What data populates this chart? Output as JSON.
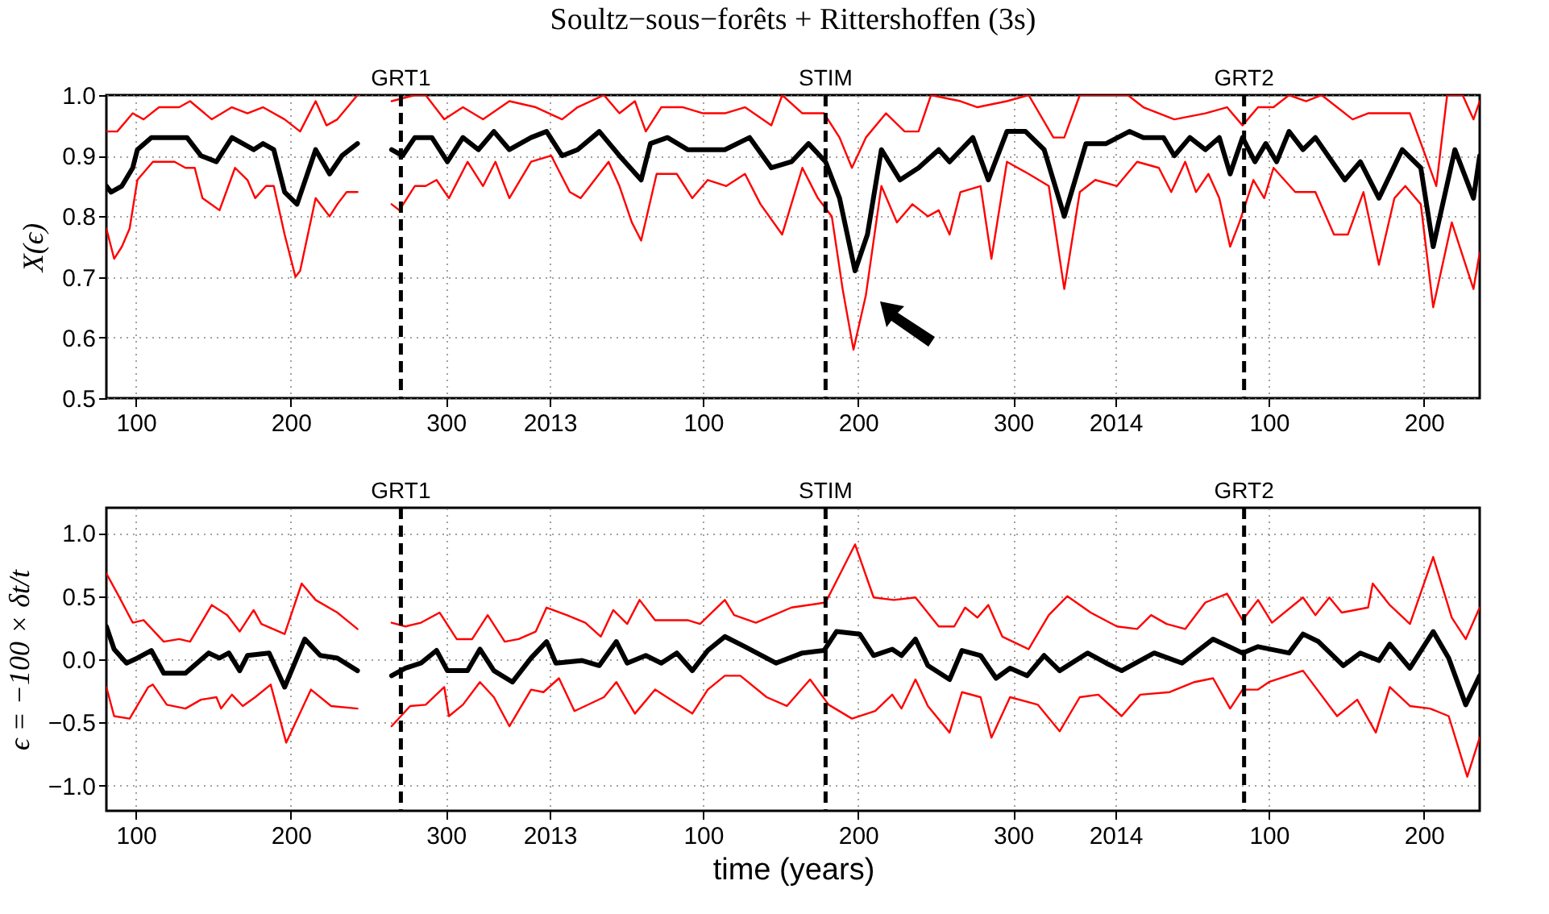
{
  "chart_data": [
    {
      "type": "line",
      "title": "Soultz−sous−forêts + Rittershoffen (3s)",
      "ylabel": "X(ϵ)",
      "xlim": [
        "2012-03-21",
        "2014-08-24"
      ],
      "ylim": [
        0.5,
        1.0
      ],
      "xticks": [
        {
          "value": "2012-04-09",
          "label": "100"
        },
        {
          "value": "2012-07-18",
          "label": "200"
        },
        {
          "value": "2012-10-26",
          "label": "300"
        },
        {
          "value": "2013-01-01",
          "label": "2013"
        },
        {
          "value": "2013-04-10",
          "label": "100"
        },
        {
          "value": "2013-07-19",
          "label": "200"
        },
        {
          "value": "2013-10-27",
          "label": "300"
        },
        {
          "value": "2014-01-01",
          "label": "2014"
        },
        {
          "value": "2014-04-10",
          "label": "100"
        },
        {
          "value": "2014-07-19",
          "label": "200"
        }
      ],
      "yticks": [
        {
          "value": 0.5,
          "label": "0.5"
        },
        {
          "value": 0.6,
          "label": "0.6"
        },
        {
          "value": 0.7,
          "label": "0.7"
        },
        {
          "value": 0.8,
          "label": "0.8"
        },
        {
          "value": 0.9,
          "label": "0.9"
        },
        {
          "value": 1.0,
          "label": "1.0"
        }
      ],
      "grid": true,
      "ref_lines": [
        {
          "axis": "x",
          "value": "2012-09-27",
          "label": "GRT1",
          "color": "#000000",
          "line_style": "dashed"
        },
        {
          "axis": "x",
          "value": "2013-06-28",
          "label": "STIM",
          "color": "#000000",
          "line_style": "dashed"
        },
        {
          "axis": "x",
          "value": "2014-03-25",
          "label": "GRT2",
          "color": "#000000",
          "line_style": "dashed"
        }
      ],
      "series": [
        {
          "color": "#ff0000",
          "x": [
            "2012-03-21",
            "2012-03-28",
            "2012-04-07",
            "2012-04-14",
            "2012-04-24",
            "2012-05-07",
            "2012-05-14",
            "2012-05-28",
            "2012-06-10",
            "2012-06-20",
            "2012-06-30",
            "2012-07-14",
            "2012-07-24",
            "2012-08-03",
            "2012-08-10",
            "2012-08-17",
            "2012-08-30",
            "2012-09-10",
            "2012-09-21",
            "2012-10-06",
            "2012-10-13",
            "2012-10-25",
            "2012-11-06",
            "2012-11-19",
            "2012-12-06",
            "2012-12-23",
            "2013-01-09",
            "2013-01-19",
            "2013-02-05",
            "2013-02-15",
            "2013-02-25",
            "2013-03-04",
            "2013-03-14",
            "2013-03-28",
            "2013-04-10",
            "2013-04-24",
            "2013-05-07",
            "2013-05-24",
            "2013-05-31",
            "2013-06-13",
            "2013-06-27",
            "2013-07-07",
            "2013-07-15",
            "2013-07-24",
            "2013-08-06",
            "2013-08-18",
            "2013-08-27",
            "2013-09-04",
            "2013-09-23",
            "2013-10-04",
            "2013-10-23",
            "2013-11-06",
            "2013-11-22",
            "2013-11-29",
            "2013-12-09",
            "2014-01-09",
            "2014-01-19",
            "2014-02-08",
            "2014-02-28",
            "2014-03-14",
            "2014-03-24",
            "2014-04-03",
            "2014-04-13",
            "2014-04-23",
            "2014-05-04",
            "2014-05-14",
            "2014-05-24",
            "2014-06-03",
            "2014-06-13",
            "2014-07-10",
            "2014-07-20",
            "2014-07-27",
            "2014-08-03",
            "2014-08-13",
            "2014-08-20",
            "2014-08-24"
          ],
          "values": [
            0.94,
            0.94,
            0.97,
            0.96,
            0.98,
            0.98,
            0.99,
            0.96,
            0.98,
            0.97,
            0.98,
            0.96,
            0.94,
            0.99,
            0.95,
            0.96,
            1.0,
            null,
            0.99,
            1.0,
            1.0,
            0.96,
            0.98,
            0.96,
            0.99,
            0.98,
            0.96,
            0.98,
            1.0,
            0.97,
            0.99,
            0.94,
            0.98,
            0.98,
            0.97,
            0.97,
            0.98,
            0.95,
            1.0,
            0.97,
            0.97,
            0.93,
            0.88,
            0.93,
            0.97,
            0.94,
            0.94,
            1.0,
            0.99,
            0.98,
            0.99,
            1.0,
            0.93,
            0.93,
            1.0,
            1.0,
            0.98,
            0.96,
            0.97,
            0.98,
            0.95,
            0.98,
            0.98,
            1.0,
            0.99,
            1.0,
            0.98,
            0.96,
            0.97,
            0.97,
            0.9,
            0.85,
            1.0,
            1.0,
            0.96,
            0.99
          ]
        },
        {
          "color": "#ff0000",
          "x": [
            "2012-03-21",
            "2012-03-26",
            "2012-03-31",
            "2012-04-05",
            "2012-04-10",
            "2012-04-20",
            "2012-05-04",
            "2012-05-11",
            "2012-05-17",
            "2012-05-22",
            "2012-06-02",
            "2012-06-12",
            "2012-06-20",
            "2012-06-25",
            "2012-07-02",
            "2012-07-07",
            "2012-07-14",
            "2012-07-21",
            "2012-07-24",
            "2012-08-03",
            "2012-08-12",
            "2012-08-17",
            "2012-08-23",
            "2012-08-30",
            "2012-09-10",
            "2012-09-21",
            "2012-09-26",
            "2012-10-06",
            "2012-10-13",
            "2012-10-20",
            "2012-10-28",
            "2012-11-09",
            "2012-11-19",
            "2012-11-27",
            "2012-12-06",
            "2012-12-20",
            "2013-01-02",
            "2013-01-14",
            "2013-01-21",
            "2013-02-08",
            "2013-02-15",
            "2013-02-23",
            "2013-03-01",
            "2013-03-11",
            "2013-03-24",
            "2013-04-03",
            "2013-04-13",
            "2013-04-25",
            "2013-05-07",
            "2013-05-17",
            "2013-05-31",
            "2013-06-13",
            "2013-06-23",
            "2013-07-02",
            "2013-07-09",
            "2013-07-16",
            "2013-07-24",
            "2013-08-03",
            "2013-08-13",
            "2013-08-23",
            "2013-09-02",
            "2013-09-09",
            "2013-09-16",
            "2013-09-23",
            "2013-10-06",
            "2013-10-13",
            "2013-10-23",
            "2013-11-06",
            "2013-11-19",
            "2013-11-29",
            "2013-12-09",
            "2013-12-19",
            "2014-01-02",
            "2014-01-15",
            "2014-01-29",
            "2014-02-06",
            "2014-02-15",
            "2014-02-22",
            "2014-03-02",
            "2014-03-09",
            "2014-03-16",
            "2014-03-22",
            "2014-03-31",
            "2014-04-07",
            "2014-04-13",
            "2014-04-27",
            "2014-05-10",
            "2014-05-22",
            "2014-05-31",
            "2014-06-10",
            "2014-06-20",
            "2014-06-30",
            "2014-07-07",
            "2014-07-17",
            "2014-07-25",
            "2014-08-06",
            "2014-08-20",
            "2014-08-24"
          ],
          "values": [
            0.78,
            0.73,
            0.75,
            0.78,
            0.86,
            0.89,
            0.89,
            0.88,
            0.88,
            0.83,
            0.81,
            0.88,
            0.86,
            0.83,
            0.85,
            0.85,
            0.77,
            0.7,
            0.71,
            0.83,
            0.8,
            0.82,
            0.84,
            0.84,
            null,
            0.82,
            0.81,
            0.85,
            0.85,
            0.86,
            0.83,
            0.89,
            0.85,
            0.89,
            0.83,
            0.89,
            0.9,
            0.84,
            0.83,
            0.89,
            0.85,
            0.79,
            0.76,
            0.87,
            0.87,
            0.83,
            0.86,
            0.85,
            0.87,
            0.82,
            0.77,
            0.88,
            0.83,
            0.8,
            0.68,
            0.58,
            0.67,
            0.85,
            0.79,
            0.82,
            0.8,
            0.81,
            0.77,
            0.84,
            0.85,
            0.73,
            0.89,
            0.87,
            0.85,
            0.68,
            0.84,
            0.86,
            0.85,
            0.89,
            0.88,
            0.84,
            0.89,
            0.84,
            0.87,
            0.83,
            0.75,
            0.79,
            0.86,
            0.83,
            0.88,
            0.84,
            0.84,
            0.77,
            0.77,
            0.84,
            0.72,
            0.83,
            0.85,
            0.82,
            0.65,
            0.79,
            0.68,
            0.74
          ]
        },
        {
          "color": "#000000",
          "x": [
            "2012-03-21",
            "2012-03-24",
            "2012-03-31",
            "2012-04-07",
            "2012-04-10",
            "2012-04-19",
            "2012-04-27",
            "2012-05-07",
            "2012-05-12",
            "2012-05-21",
            "2012-05-31",
            "2012-06-10",
            "2012-06-24",
            "2012-06-30",
            "2012-07-07",
            "2012-07-14",
            "2012-07-22",
            "2012-08-03",
            "2012-08-12",
            "2012-08-20",
            "2012-08-30",
            "2012-09-10",
            "2012-09-21",
            "2012-09-28",
            "2012-10-06",
            "2012-10-17",
            "2012-10-27",
            "2012-11-06",
            "2012-11-16",
            "2012-11-26",
            "2012-12-06",
            "2012-12-20",
            "2012-12-30",
            "2013-01-09",
            "2013-01-19",
            "2013-02-02",
            "2013-02-15",
            "2013-03-01",
            "2013-03-07",
            "2013-03-18",
            "2013-03-31",
            "2013-04-13",
            "2013-04-24",
            "2013-05-10",
            "2013-05-24",
            "2013-06-06",
            "2013-06-17",
            "2013-06-28",
            "2013-07-07",
            "2013-07-17",
            "2013-07-25",
            "2013-08-03",
            "2013-08-15",
            "2013-08-27",
            "2013-09-09",
            "2013-09-16",
            "2013-10-01",
            "2013-10-11",
            "2013-10-23",
            "2013-11-04",
            "2013-11-16",
            "2013-11-29",
            "2013-12-13",
            "2013-12-26",
            "2014-01-10",
            "2014-01-19",
            "2014-02-01",
            "2014-02-08",
            "2014-02-18",
            "2014-02-28",
            "2014-03-09",
            "2014-03-16",
            "2014-03-24",
            "2014-04-01",
            "2014-04-08",
            "2014-04-15",
            "2014-04-23",
            "2014-05-02",
            "2014-05-10",
            "2014-05-29",
            "2014-06-08",
            "2014-06-20",
            "2014-07-05",
            "2014-07-17",
            "2014-07-25",
            "2014-08-08",
            "2014-08-20",
            "2014-08-24"
          ],
          "values": [
            0.85,
            0.84,
            0.85,
            0.88,
            0.91,
            0.93,
            0.93,
            0.93,
            0.93,
            0.9,
            0.89,
            0.93,
            0.91,
            0.92,
            0.91,
            0.84,
            0.82,
            0.91,
            0.87,
            0.9,
            0.92,
            null,
            0.91,
            0.9,
            0.93,
            0.93,
            0.89,
            0.93,
            0.91,
            0.94,
            0.91,
            0.93,
            0.94,
            0.9,
            0.91,
            0.94,
            0.9,
            0.86,
            0.92,
            0.93,
            0.91,
            0.91,
            0.91,
            0.93,
            0.88,
            0.89,
            0.92,
            0.89,
            0.83,
            0.71,
            0.77,
            0.91,
            0.86,
            0.88,
            0.91,
            0.89,
            0.93,
            0.86,
            0.94,
            0.94,
            0.91,
            0.8,
            0.92,
            0.92,
            0.94,
            0.93,
            0.93,
            0.9,
            0.93,
            0.91,
            0.93,
            0.87,
            0.93,
            0.89,
            0.92,
            0.89,
            0.94,
            0.91,
            0.93,
            0.86,
            0.89,
            0.83,
            0.91,
            0.88,
            0.75,
            0.91,
            0.83,
            0.9
          ]
        }
      ]
    },
    {
      "type": "line",
      "xlabel": "time (years)",
      "ylabel": "ϵ = −100 × δt/t",
      "xlim": [
        "2012-03-21",
        "2014-08-24"
      ],
      "ylim": [
        -1.2,
        1.2
      ],
      "xticks": [
        {
          "value": "2012-04-09",
          "label": "100"
        },
        {
          "value": "2012-07-18",
          "label": "200"
        },
        {
          "value": "2012-10-26",
          "label": "300"
        },
        {
          "value": "2013-01-01",
          "label": "2013"
        },
        {
          "value": "2013-04-10",
          "label": "100"
        },
        {
          "value": "2013-07-19",
          "label": "200"
        },
        {
          "value": "2013-10-27",
          "label": "300"
        },
        {
          "value": "2014-01-01",
          "label": "2014"
        },
        {
          "value": "2014-04-10",
          "label": "100"
        },
        {
          "value": "2014-07-19",
          "label": "200"
        }
      ],
      "yticks": [
        {
          "value": -1.0,
          "label": "−1.0"
        },
        {
          "value": -0.5,
          "label": "−0.5"
        },
        {
          "value": 0.0,
          "label": "0.0"
        },
        {
          "value": 0.5,
          "label": "0.5"
        },
        {
          "value": 1.0,
          "label": "1.0"
        }
      ],
      "grid": true,
      "ref_lines": [
        {
          "axis": "x",
          "value": "2012-09-27",
          "label": "GRT1",
          "color": "#000000",
          "line_style": "dashed"
        },
        {
          "axis": "x",
          "value": "2013-06-28",
          "label": "STIM",
          "color": "#000000",
          "line_style": "dashed"
        },
        {
          "axis": "x",
          "value": "2014-03-25",
          "label": "GRT2",
          "color": "#000000",
          "line_style": "dashed"
        }
      ],
      "series": [
        {
          "color": "#ff0000",
          "x": [
            "2012-03-21",
            "2012-03-29",
            "2012-04-07",
            "2012-04-14",
            "2012-04-27",
            "2012-05-07",
            "2012-05-14",
            "2012-05-28",
            "2012-06-07",
            "2012-06-15",
            "2012-06-24",
            "2012-06-29",
            "2012-07-14",
            "2012-07-25",
            "2012-08-03",
            "2012-08-17",
            "2012-08-30",
            "2012-09-10",
            "2012-09-21",
            "2012-09-30",
            "2012-10-10",
            "2012-10-22",
            "2012-11-02",
            "2012-11-12",
            "2012-11-22",
            "2012-12-03",
            "2012-12-12",
            "2012-12-23",
            "2012-12-30",
            "2013-01-12",
            "2013-01-24",
            "2013-02-03",
            "2013-02-11",
            "2013-02-20",
            "2013-02-28",
            "2013-03-10",
            "2013-03-31",
            "2013-04-08",
            "2013-04-24",
            "2013-04-30",
            "2013-05-14",
            "2013-06-06",
            "2013-06-28",
            "2013-07-17",
            "2013-07-29",
            "2013-08-11",
            "2013-08-25",
            "2013-09-09",
            "2013-09-19",
            "2013-09-26",
            "2013-10-04",
            "2013-10-11",
            "2013-10-20",
            "2013-11-06",
            "2013-11-19",
            "2013-12-01",
            "2013-12-16",
            "2014-01-02",
            "2014-01-15",
            "2014-01-24",
            "2014-02-03",
            "2014-02-15",
            "2014-02-28",
            "2014-03-14",
            "2014-03-24",
            "2014-04-03",
            "2014-04-12",
            "2014-05-02",
            "2014-05-10",
            "2014-05-19",
            "2014-05-27",
            "2014-06-13",
            "2014-06-16",
            "2014-06-27",
            "2014-07-10",
            "2014-07-25",
            "2014-08-06",
            "2014-08-15",
            "2014-08-24"
          ],
          "values": [
            0.68,
            0.5,
            0.29,
            0.31,
            0.14,
            0.16,
            0.14,
            0.43,
            0.35,
            0.22,
            0.39,
            0.28,
            0.2,
            0.6,
            0.47,
            0.37,
            0.24,
            null,
            0.29,
            0.26,
            0.29,
            0.37,
            0.16,
            0.16,
            0.35,
            0.14,
            0.16,
            0.22,
            0.41,
            0.35,
            0.29,
            0.18,
            0.39,
            0.28,
            0.47,
            0.31,
            0.31,
            0.28,
            0.47,
            0.35,
            0.29,
            0.41,
            0.45,
            0.91,
            0.49,
            0.47,
            0.49,
            0.26,
            0.26,
            0.41,
            0.33,
            0.43,
            0.18,
            0.08,
            0.35,
            0.5,
            0.37,
            0.26,
            0.24,
            0.35,
            0.28,
            0.24,
            0.45,
            0.52,
            0.31,
            0.47,
            0.29,
            0.49,
            0.35,
            0.49,
            0.37,
            0.41,
            0.6,
            0.43,
            0.28,
            0.81,
            0.33,
            0.16,
            0.41
          ]
        },
        {
          "color": "#ff0000",
          "x": [
            "2012-03-21",
            "2012-03-26",
            "2012-04-05",
            "2012-04-17",
            "2012-04-20",
            "2012-04-29",
            "2012-05-11",
            "2012-05-21",
            "2012-05-31",
            "2012-06-03",
            "2012-06-10",
            "2012-06-17",
            "2012-06-25",
            "2012-07-05",
            "2012-07-15",
            "2012-07-31",
            "2012-08-13",
            "2012-08-30",
            "2012-09-10",
            "2012-09-21",
            "2012-10-03",
            "2012-10-13",
            "2012-10-25",
            "2012-10-28",
            "2012-11-06",
            "2012-11-17",
            "2012-11-26",
            "2012-12-06",
            "2012-12-20",
            "2012-12-28",
            "2013-01-07",
            "2013-01-17",
            "2013-02-05",
            "2013-02-13",
            "2013-02-25",
            "2013-03-10",
            "2013-04-03",
            "2013-04-13",
            "2013-04-24",
            "2013-05-04",
            "2013-05-21",
            "2013-06-03",
            "2013-06-18",
            "2013-06-30",
            "2013-07-15",
            "2013-07-30",
            "2013-08-10",
            "2013-08-16",
            "2013-08-25",
            "2013-09-02",
            "2013-09-16",
            "2013-09-24",
            "2013-10-06",
            "2013-10-13",
            "2013-10-25",
            "2013-11-12",
            "2013-11-26",
            "2013-12-09",
            "2013-12-21",
            "2014-01-05",
            "2014-01-17",
            "2014-02-05",
            "2014-02-21",
            "2014-03-05",
            "2014-03-16",
            "2014-03-24",
            "2014-04-03",
            "2014-04-10",
            "2014-05-02",
            "2014-05-24",
            "2014-06-06",
            "2014-06-18",
            "2014-06-27",
            "2014-07-10",
            "2014-07-23",
            "2014-08-04",
            "2014-08-16",
            "2014-08-24"
          ],
          "values": [
            -0.22,
            -0.45,
            -0.47,
            -0.22,
            -0.2,
            -0.36,
            -0.39,
            -0.32,
            -0.3,
            -0.39,
            -0.28,
            -0.37,
            -0.3,
            -0.2,
            -0.66,
            -0.24,
            -0.37,
            -0.39,
            null,
            -0.53,
            -0.37,
            -0.36,
            -0.22,
            -0.45,
            -0.36,
            -0.18,
            -0.3,
            -0.53,
            -0.24,
            -0.26,
            -0.15,
            -0.41,
            -0.3,
            -0.18,
            -0.43,
            -0.24,
            -0.43,
            -0.24,
            -0.13,
            -0.13,
            -0.3,
            -0.37,
            -0.16,
            -0.36,
            -0.47,
            -0.41,
            -0.28,
            -0.39,
            -0.16,
            -0.37,
            -0.58,
            -0.26,
            -0.3,
            -0.62,
            -0.3,
            -0.36,
            -0.57,
            -0.3,
            -0.28,
            -0.45,
            -0.28,
            -0.26,
            -0.18,
            -0.15,
            -0.39,
            -0.24,
            -0.24,
            -0.18,
            -0.09,
            -0.45,
            -0.32,
            -0.58,
            -0.22,
            -0.37,
            -0.39,
            -0.45,
            -0.93,
            -0.62
          ]
        },
        {
          "color": "#000000",
          "x": [
            "2012-03-21",
            "2012-03-26",
            "2012-04-03",
            "2012-04-10",
            "2012-04-19",
            "2012-04-27",
            "2012-05-11",
            "2012-05-26",
            "2012-06-02",
            "2012-06-08",
            "2012-06-15",
            "2012-06-20",
            "2012-07-04",
            "2012-07-14",
            "2012-07-27",
            "2012-08-06",
            "2012-08-17",
            "2012-08-30",
            "2012-09-10",
            "2012-09-21",
            "2012-09-30",
            "2012-10-10",
            "2012-10-20",
            "2012-10-27",
            "2012-11-09",
            "2012-11-17",
            "2012-11-26",
            "2012-12-08",
            "2012-12-20",
            "2012-12-30",
            "2013-01-05",
            "2013-01-22",
            "2013-02-02",
            "2013-02-13",
            "2013-02-20",
            "2013-03-04",
            "2013-03-14",
            "2013-03-24",
            "2013-04-03",
            "2013-04-13",
            "2013-04-24",
            "2013-05-07",
            "2013-05-27",
            "2013-06-13",
            "2013-06-27",
            "2013-07-05",
            "2013-07-20",
            "2013-07-29",
            "2013-08-10",
            "2013-08-16",
            "2013-08-25",
            "2013-09-02",
            "2013-09-16",
            "2013-09-24",
            "2013-10-06",
            "2013-10-16",
            "2013-10-25",
            "2013-11-05",
            "2013-11-16",
            "2013-11-26",
            "2013-12-14",
            "2013-12-26",
            "2014-01-05",
            "2014-01-26",
            "2014-02-13",
            "2014-03-05",
            "2014-03-24",
            "2014-04-03",
            "2014-04-23",
            "2014-05-02",
            "2014-05-12",
            "2014-05-28",
            "2014-06-08",
            "2014-06-20",
            "2014-06-27",
            "2014-07-10",
            "2014-07-25",
            "2014-08-04",
            "2014-08-15",
            "2014-08-24"
          ],
          "values": [
            0.26,
            0.08,
            -0.03,
            0.01,
            0.07,
            -0.11,
            -0.11,
            0.05,
            0.01,
            0.05,
            -0.09,
            0.03,
            0.05,
            -0.22,
            0.16,
            0.03,
            0.01,
            -0.09,
            null,
            -0.13,
            -0.07,
            -0.03,
            0.07,
            -0.09,
            -0.09,
            0.08,
            -0.09,
            -0.18,
            0.01,
            0.14,
            -0.03,
            -0.01,
            -0.05,
            0.14,
            -0.03,
            0.03,
            -0.03,
            0.05,
            -0.09,
            0.07,
            0.18,
            0.1,
            -0.03,
            0.05,
            0.07,
            0.22,
            0.2,
            0.03,
            0.08,
            0.03,
            0.16,
            -0.05,
            -0.16,
            0.07,
            0.03,
            -0.15,
            -0.07,
            -0.13,
            0.03,
            -0.09,
            0.05,
            -0.03,
            -0.09,
            0.05,
            -0.03,
            0.16,
            0.05,
            0.1,
            0.05,
            0.2,
            0.14,
            -0.05,
            0.05,
            -0.01,
            0.12,
            -0.07,
            0.22,
            0.01,
            -0.36,
            -0.13
          ]
        }
      ]
    }
  ]
}
